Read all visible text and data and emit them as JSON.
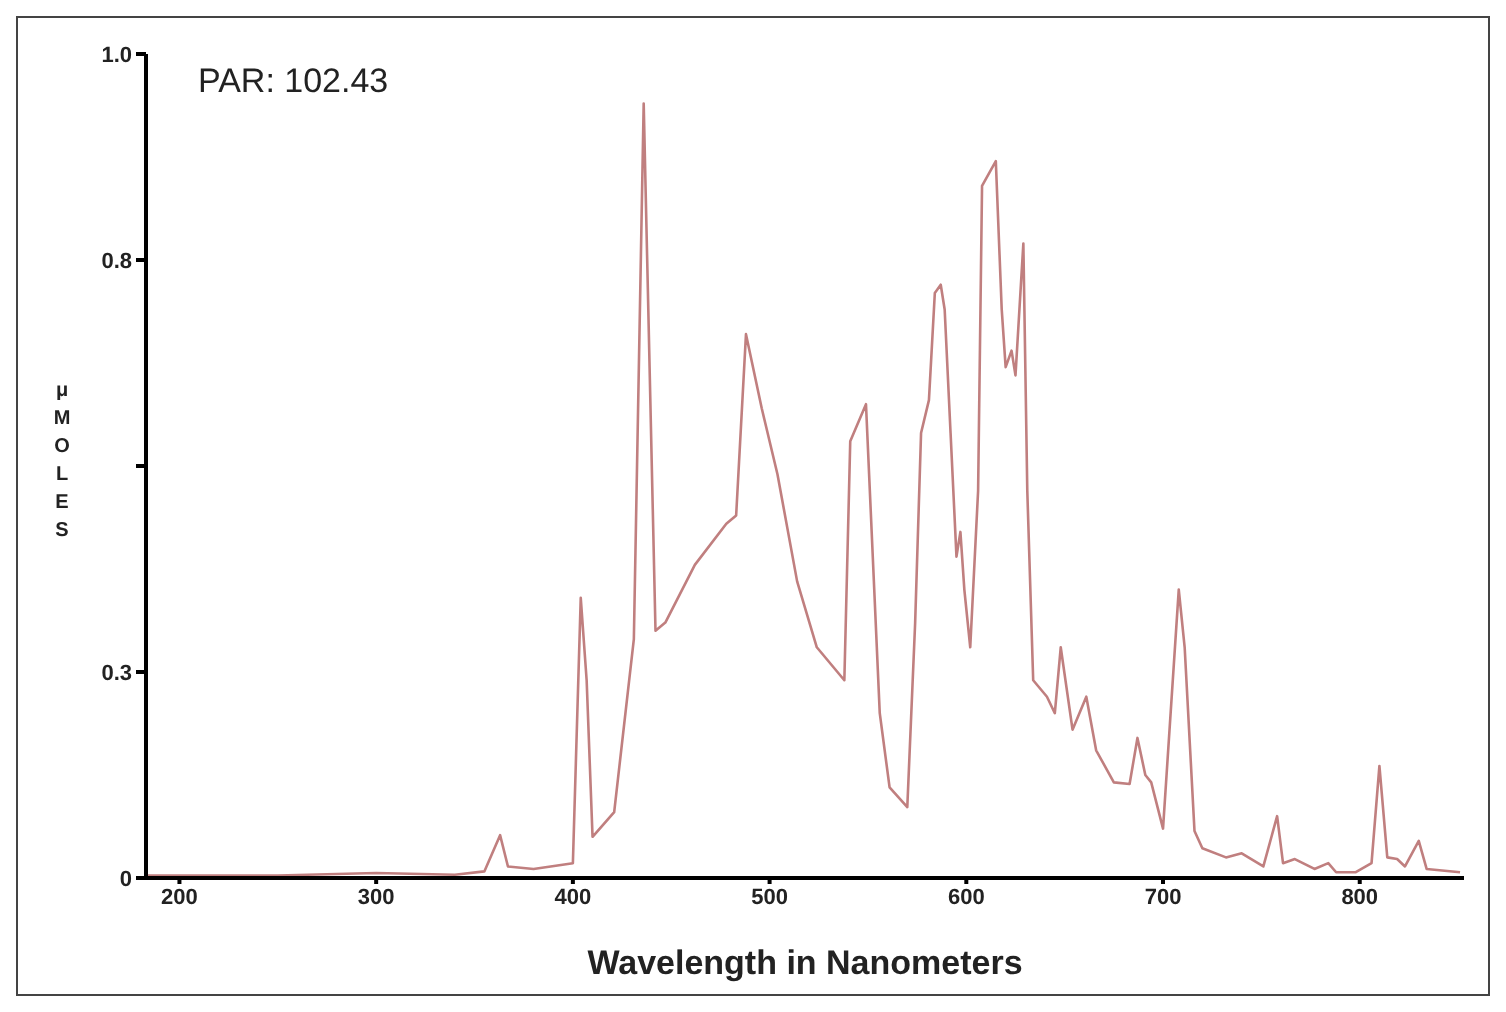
{
  "chart_data": {
    "type": "line",
    "xlabel": "Wavelength in Nanometers",
    "ylabel": "μMOLES",
    "annotations": [
      "PAR: 102.43"
    ],
    "x": [
      183,
      250,
      300,
      340,
      355,
      363,
      367,
      380,
      400,
      404,
      407,
      410,
      421,
      431,
      436,
      442,
      447,
      462,
      478,
      483,
      488,
      496,
      504,
      514,
      524,
      538,
      541,
      549,
      556,
      561,
      570,
      574,
      577,
      581,
      584,
      587,
      589,
      592,
      595,
      597,
      599,
      602,
      606,
      608,
      615,
      618,
      620,
      623,
      625,
      629,
      631,
      634,
      641,
      645,
      648,
      654,
      661,
      666,
      675,
      683,
      687,
      691,
      694,
      700,
      708,
      711,
      716,
      720,
      732,
      740,
      751,
      758,
      761,
      767,
      777,
      784,
      788,
      798,
      806,
      810,
      814,
      819,
      823,
      830,
      834,
      851
    ],
    "series": [
      {
        "color": "#c07f7f",
        "values": [
          0.003,
          0.003,
          0.006,
          0.004,
          0.008,
          0.052,
          0.014,
          0.011,
          0.018,
          0.34,
          0.24,
          0.05,
          0.08,
          0.29,
          0.94,
          0.3,
          0.31,
          0.38,
          0.43,
          0.44,
          0.66,
          0.57,
          0.49,
          0.36,
          0.28,
          0.24,
          0.53,
          0.575,
          0.2,
          0.11,
          0.086,
          0.31,
          0.54,
          0.58,
          0.71,
          0.72,
          0.69,
          0.54,
          0.39,
          0.42,
          0.35,
          0.28,
          0.47,
          0.84,
          0.87,
          0.69,
          0.62,
          0.64,
          0.61,
          0.77,
          0.47,
          0.24,
          0.22,
          0.2,
          0.28,
          0.18,
          0.22,
          0.155,
          0.116,
          0.114,
          0.17,
          0.125,
          0.116,
          0.06,
          0.35,
          0.28,
          0.057,
          0.036,
          0.025,
          0.03,
          0.014,
          0.075,
          0.018,
          0.023,
          0.011,
          0.018,
          0.007,
          0.007,
          0.018,
          0.136,
          0.025,
          0.023,
          0.014,
          0.045,
          0.011,
          0.007
        ]
      }
    ],
    "xlim": [
      183,
      853
    ],
    "xticks": [
      200,
      300,
      400,
      500,
      600,
      700,
      800
    ],
    "ylim": [
      0,
      1.0
    ],
    "yticks": [
      0,
      {
        "value": 0.25,
        "label": "0.3"
      },
      {
        "value": 0.5,
        "label": null
      },
      {
        "value": 0.75,
        "label": "0.8"
      },
      {
        "value": 1.0,
        "label": "1.0"
      }
    ],
    "grid": false,
    "legend": false,
    "marker": "none",
    "line_style": "solid"
  }
}
